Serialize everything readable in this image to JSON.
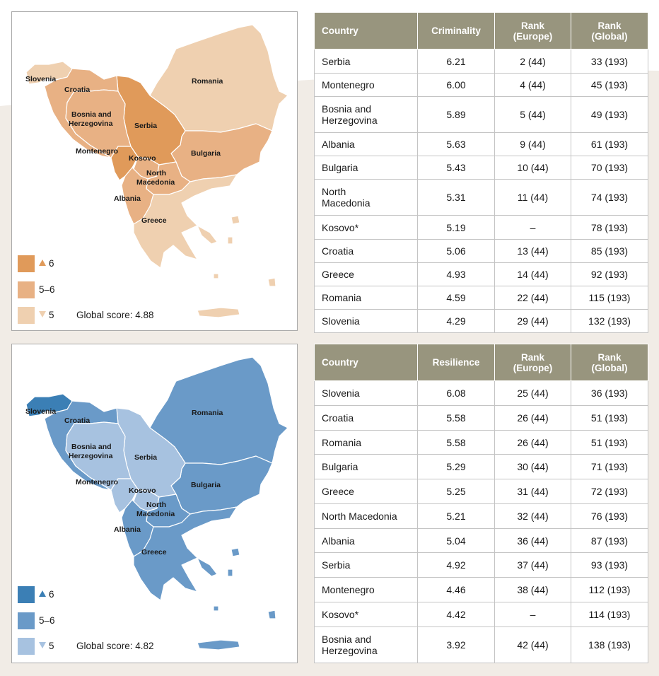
{
  "criminality_map": {
    "labels": {
      "slovenia": "Slovenia",
      "croatia": "Croatia",
      "bosnia": "Bosnia and Herzegovina",
      "bosnia_l1": "Bosnia and",
      "bosnia_l2": "Herzegovina",
      "serbia": "Serbia",
      "montenegro": "Montenegro",
      "kosovo": "Kosovo",
      "north_macedonia_l1": "North",
      "north_macedonia_l2": "Macedonia",
      "albania": "Albania",
      "greece": "Greece",
      "romania": "Romania",
      "bulgaria": "Bulgaria"
    },
    "legend": {
      "high": "6",
      "mid": "5–6",
      "low": "5",
      "global_score": "Global score: 4.88"
    },
    "colors": {
      "high": "#e09a5a",
      "mid": "#e8b184",
      "low": "#efd0b0"
    },
    "categories": {
      "slovenia": "low",
      "croatia": "mid",
      "bosnia": "mid",
      "serbia": "high",
      "montenegro": "high",
      "kosovo": "mid",
      "north_macedonia": "mid",
      "albania": "mid",
      "greece": "low",
      "romania": "low",
      "bulgaria": "mid"
    }
  },
  "resilience_map": {
    "labels": {
      "slovenia": "Slovenia",
      "croatia": "Croatia",
      "bosnia_l1": "Bosnia and",
      "bosnia_l2": "Herzegovina",
      "serbia": "Serbia",
      "montenegro": "Montenegro",
      "kosovo": "Kosovo",
      "north_macedonia_l1": "North",
      "north_macedonia_l2": "Macedonia",
      "albania": "Albania",
      "greece": "Greece",
      "romania": "Romania",
      "bulgaria": "Bulgaria"
    },
    "legend": {
      "high": "6",
      "mid": "5–6",
      "low": "5",
      "global_score": "Global score: 4.82"
    },
    "colors": {
      "high": "#3b7fb5",
      "mid": "#6a9ac8",
      "low": "#a7c2e0"
    },
    "categories": {
      "slovenia": "high",
      "croatia": "mid",
      "bosnia": "low",
      "serbia": "low",
      "montenegro": "low",
      "kosovo": "low",
      "north_macedonia": "mid",
      "albania": "mid",
      "greece": "mid",
      "romania": "mid",
      "bulgaria": "mid"
    }
  },
  "criminality_table": {
    "headers": [
      "Country",
      "Criminality",
      "Rank (Europe)",
      "Rank (Global)"
    ],
    "header_lines": [
      [
        "Country"
      ],
      [
        "Criminality"
      ],
      [
        "Rank",
        "(Europe)"
      ],
      [
        "Rank",
        "(Global)"
      ]
    ],
    "rows": [
      {
        "country": [
          "Serbia"
        ],
        "score": "6.21",
        "europe": "2 (44)",
        "global": "33 (193)"
      },
      {
        "country": [
          "Montenegro"
        ],
        "score": "6.00",
        "europe": "4 (44)",
        "global": "45 (193)"
      },
      {
        "country": [
          "Bosnia and",
          "Herzegovina"
        ],
        "score": "5.89",
        "europe": "5 (44)",
        "global": "49 (193)"
      },
      {
        "country": [
          "Albania"
        ],
        "score": "5.63",
        "europe": "9 (44)",
        "global": "61 (193)"
      },
      {
        "country": [
          "Bulgaria"
        ],
        "score": "5.43",
        "europe": "10 (44)",
        "global": "70 (193)"
      },
      {
        "country": [
          "North",
          "Macedonia"
        ],
        "score": "5.31",
        "europe": "11 (44)",
        "global": "74 (193)"
      },
      {
        "country": [
          "Kosovo*"
        ],
        "score": "5.19",
        "europe": "–",
        "global": "78 (193)"
      },
      {
        "country": [
          "Croatia"
        ],
        "score": "5.06",
        "europe": "13 (44)",
        "global": "85 (193)"
      },
      {
        "country": [
          "Greece"
        ],
        "score": "4.93",
        "europe": "14 (44)",
        "global": "92 (193)"
      },
      {
        "country": [
          "Romania"
        ],
        "score": "4.59",
        "europe": "22 (44)",
        "global": "115 (193)"
      },
      {
        "country": [
          "Slovenia"
        ],
        "score": "4.29",
        "europe": "29 (44)",
        "global": "132 (193)"
      }
    ]
  },
  "resilience_table": {
    "header_lines": [
      [
        "Country"
      ],
      [
        "Resilience"
      ],
      [
        "Rank",
        "(Europe)"
      ],
      [
        "Rank",
        "(Global)"
      ]
    ],
    "rows": [
      {
        "country": [
          "Slovenia"
        ],
        "score": "6.08",
        "europe": "25 (44)",
        "global": "36 (193)"
      },
      {
        "country": [
          "Croatia"
        ],
        "score": "5.58",
        "europe": "26 (44)",
        "global": "51 (193)"
      },
      {
        "country": [
          "Romania"
        ],
        "score": "5.58",
        "europe": "26 (44)",
        "global": "51 (193)"
      },
      {
        "country": [
          "Bulgaria"
        ],
        "score": "5.29",
        "europe": "30 (44)",
        "global": "71 (193)"
      },
      {
        "country": [
          "Greece"
        ],
        "score": "5.25",
        "europe": "31 (44)",
        "global": "72 (193)"
      },
      {
        "country": [
          "North Macedonia"
        ],
        "score": "5.21",
        "europe": "32 (44)",
        "global": "76 (193)"
      },
      {
        "country": [
          "Albania"
        ],
        "score": "5.04",
        "europe": "36 (44)",
        "global": "87 (193)"
      },
      {
        "country": [
          "Serbia"
        ],
        "score": "4.92",
        "europe": "37 (44)",
        "global": "93 (193)"
      },
      {
        "country": [
          "Montenegro"
        ],
        "score": "4.46",
        "europe": "38 (44)",
        "global": "112 (193)"
      },
      {
        "country": [
          "Kosovo*"
        ],
        "score": "4.42",
        "europe": "–",
        "global": "114 (193)"
      },
      {
        "country": [
          "Bosnia and",
          "Herzegovina"
        ],
        "score": "3.92",
        "europe": "42 (44)",
        "global": "138 (193)"
      }
    ]
  }
}
